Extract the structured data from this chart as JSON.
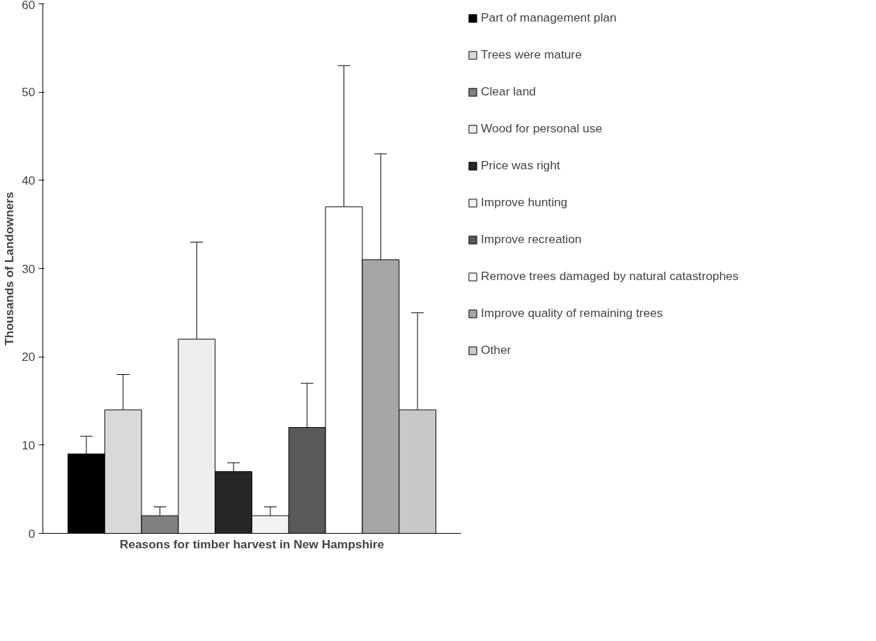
{
  "chart_data": {
    "type": "bar",
    "xlabel": "Reasons for timber harvest in New Hampshire",
    "ylabel": "Thousands of Landowners",
    "categories": [
      null
    ],
    "series": [
      {
        "name": "Part of management plan",
        "color": "#000000",
        "values": [
          9
        ],
        "errors": [
          [
            9,
            11
          ]
        ]
      },
      {
        "name": "Trees were mature",
        "color": "#d9d9d9",
        "values": [
          14
        ],
        "errors": [
          [
            14,
            18
          ]
        ]
      },
      {
        "name": "Clear land",
        "color": "#808080",
        "values": [
          2
        ],
        "errors": [
          [
            2,
            3
          ]
        ]
      },
      {
        "name": "Wood for personal use",
        "color": "#eeeeee",
        "values": [
          22
        ],
        "errors": [
          [
            22,
            33
          ]
        ]
      },
      {
        "name": "Price was right",
        "color": "#262626",
        "values": [
          7
        ],
        "errors": [
          [
            7,
            8
          ]
        ]
      },
      {
        "name": "Improve hunting",
        "color": "#f2f2f2",
        "values": [
          2
        ],
        "errors": [
          [
            2,
            3
          ]
        ]
      },
      {
        "name": "Improve recreation",
        "color": "#595959",
        "values": [
          12
        ],
        "errors": [
          [
            12,
            17
          ]
        ]
      },
      {
        "name": "Remove trees damaged by natural catastrophes",
        "color": "#ffffff",
        "values": [
          37
        ],
        "errors": [
          [
            37,
            53
          ]
        ]
      },
      {
        "name": "Improve quality of remaining trees",
        "color": "#a6a6a6",
        "values": [
          31
        ],
        "errors": [
          [
            31,
            43
          ]
        ]
      },
      {
        "name": "Other",
        "color": "#c8c8c8",
        "values": [
          14
        ],
        "errors": [
          [
            14,
            25
          ]
        ]
      }
    ],
    "ylim": [
      0,
      60
    ],
    "yticks": [
      0,
      10,
      20,
      30,
      40,
      50,
      60
    ],
    "grid": false,
    "legend": "right"
  }
}
